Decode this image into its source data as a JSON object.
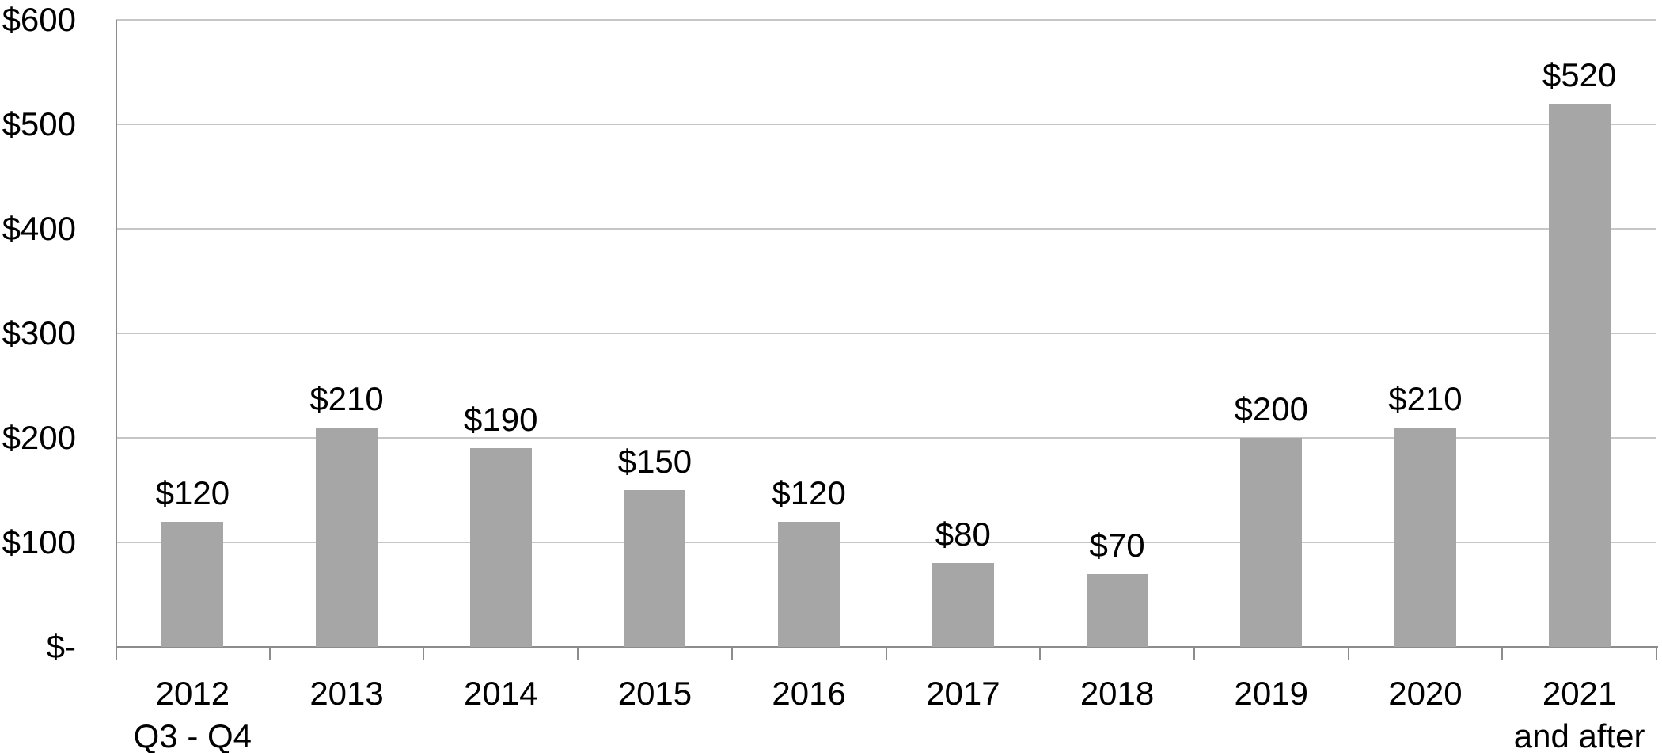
{
  "chart_data": {
    "type": "bar",
    "title": "",
    "xlabel": "",
    "ylabel": "",
    "legend": "none",
    "grid": "horizontal-only",
    "categories": [
      {
        "line1": "2012",
        "line2": "Q3 - Q4"
      },
      {
        "line1": "2013",
        "line2": ""
      },
      {
        "line1": "2014",
        "line2": ""
      },
      {
        "line1": "2015",
        "line2": ""
      },
      {
        "line1": "2016",
        "line2": ""
      },
      {
        "line1": "2017",
        "line2": ""
      },
      {
        "line1": "2018",
        "line2": ""
      },
      {
        "line1": "2019",
        "line2": ""
      },
      {
        "line1": "2020",
        "line2": ""
      },
      {
        "line1": "2021",
        "line2": "and after"
      }
    ],
    "values": [
      120,
      210,
      190,
      150,
      120,
      80,
      70,
      200,
      210,
      520
    ],
    "value_labels": [
      "$120",
      "$210",
      "$190",
      "$150",
      "$120",
      "$80",
      "$70",
      "$200",
      "$210",
      "$520"
    ],
    "y_axis": {
      "min": 0,
      "max": 600,
      "ticks": [
        {
          "label": "$600",
          "value": 600
        },
        {
          "label": "$500",
          "value": 500
        },
        {
          "label": "$400",
          "value": 400
        },
        {
          "label": "$300",
          "value": 300
        },
        {
          "label": "$200",
          "value": 200
        },
        {
          "label": "$100",
          "value": 100
        },
        {
          "label": "$-",
          "value": 0
        }
      ]
    },
    "colors": {
      "bar": "#A6A6A6",
      "gridline": "#C6C6C6",
      "axis": "#8C8C8C",
      "text": "#000000",
      "background": "#FFFFFF"
    }
  }
}
